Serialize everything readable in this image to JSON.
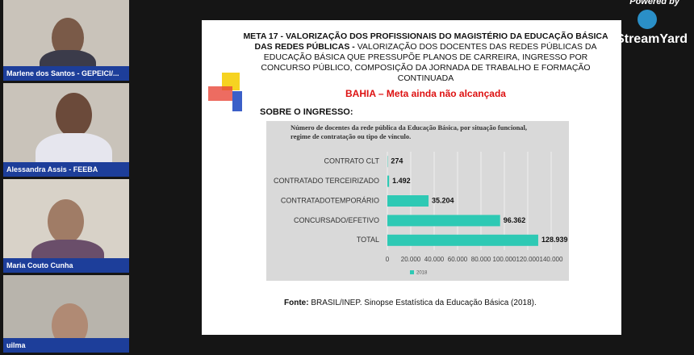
{
  "participants": [
    {
      "name": "Marlene dos Santos - GEPEICI/..."
    },
    {
      "name": "Alessandra Assis - FEEBA"
    },
    {
      "name": "Maria Couto Cunha"
    },
    {
      "name": "uilma"
    }
  ],
  "branding": {
    "powered": "Powered by",
    "logo": "StreamYard"
  },
  "slide": {
    "title_bold": "META 17 - VALORIZAÇÃO DOS PROFISSIONAIS DO MAGISTÉRIO DA EDUCAÇÃO BÁSICA DAS REDES PÚBLICAS -",
    "title_rest": "VALORIZAÇÃO DOS DOCENTES DAS REDES PÚBLICAS DA EDUCAÇÃO BÁSICA QUE PRESSUPÕE PLANOS DE CARREIRA, INGRESSO POR CONCURSO PÚBLICO, COMPOSIÇÃO DA JORNADA DE TRABALHO E FORMAÇÃO CONTINUADA",
    "status": "BAHIA – Meta ainda não alcançada",
    "section": "SOBRE O INGRESSO:",
    "chart": {
      "type": "bar",
      "title": "Número de docentes da rede pública da Educação Básica, por situação funcional, regime de contratação ou tipo de vínculo.",
      "categories": [
        "CONTRATO CLT",
        "CONTRATADO TERCEIRIZADO",
        "CONTRATADOTEMPORÁRIO",
        "CONCURSADO/EFETIVO",
        "TOTAL"
      ],
      "series": [
        {
          "name": "2018",
          "color": "#2ec9b4",
          "values": [
            274,
            1492,
            35204,
            96362,
            128939
          ],
          "value_labels": [
            "274",
            "1.492",
            "35.204",
            "96.362",
            "128.939"
          ]
        }
      ],
      "xlim": [
        0,
        140000
      ],
      "xticks": [
        0,
        {
          "value": 20000,
          "label": "20.000"
        },
        {
          "value": 40000,
          "label": "40.000"
        },
        {
          "value": 60000,
          "label": "60.000"
        },
        {
          "value": 80000,
          "label": "80.000"
        },
        {
          "value": 100000,
          "label": "100.000"
        },
        {
          "value": 120000,
          "label": "120.000"
        },
        {
          "value": 140000,
          "label": "140.000"
        }
      ]
    },
    "source_label": "Fonte:",
    "source": "BRASIL/INEP. Sinopse Estatística da Educação Básica (2018)."
  }
}
